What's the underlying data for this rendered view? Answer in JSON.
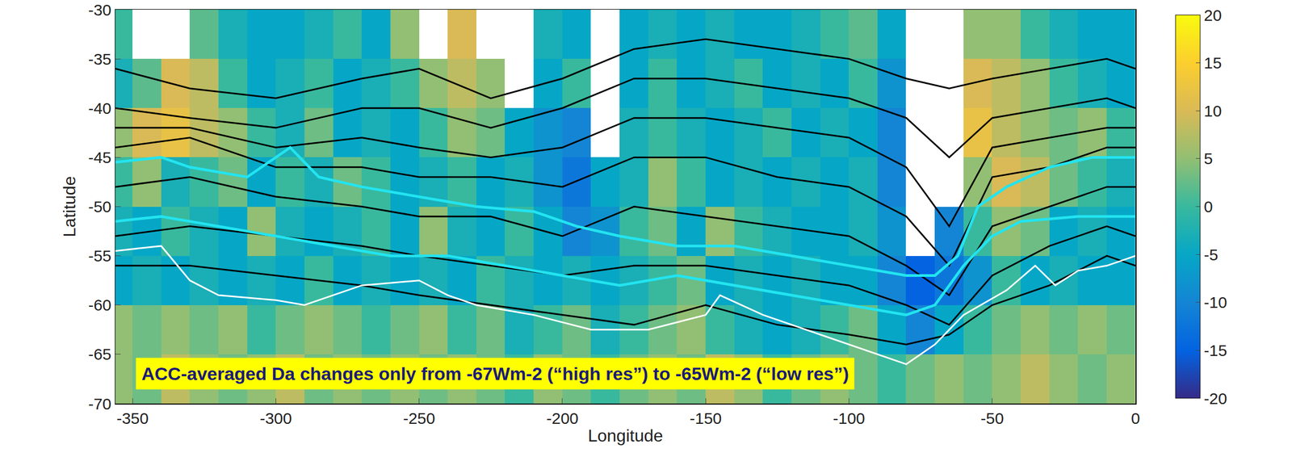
{
  "chart_data": {
    "type": "heatmap",
    "xlabel": "Longitude",
    "ylabel": "Latitude",
    "annotation": "ACC-averaged Da changes only from -67Wm-2 (“high res”) to -65Wm-2 (“low res”)",
    "xlim": [
      -356,
      0
    ],
    "ylim": [
      -70,
      -30
    ],
    "xticks": [
      -350,
      -300,
      -250,
      -200,
      -150,
      -100,
      -50,
      0
    ],
    "yticks": [
      -70,
      -65,
      -60,
      -55,
      -50,
      -45,
      -40,
      -35,
      -30
    ],
    "zlim": [
      -20,
      20
    ],
    "zticks": [
      -20,
      -15,
      -10,
      -5,
      0,
      5,
      10,
      15,
      20
    ],
    "x": [
      -355,
      -345,
      -335,
      -325,
      -315,
      -305,
      -295,
      -285,
      -275,
      -265,
      -255,
      -245,
      -235,
      -225,
      -215,
      -205,
      -195,
      -185,
      -175,
      -165,
      -155,
      -145,
      -135,
      -125,
      -115,
      -105,
      -95,
      -85,
      -75,
      -65,
      -55,
      -45,
      -35,
      -25,
      -15,
      -5
    ],
    "y": [
      -32.5,
      -37.5,
      -42.5,
      -47.5,
      -52.5,
      -57.5,
      -62.5,
      -67.5
    ],
    "z": [
      [
        0,
        null,
        null,
        2,
        -3,
        -5,
        -5,
        -3,
        0,
        -5,
        5,
        null,
        10,
        null,
        null,
        -3,
        -5,
        null,
        -5,
        -3,
        -5,
        -3,
        -5,
        -5,
        -3,
        0,
        2,
        -5,
        null,
        null,
        5,
        5,
        0,
        -3,
        -5,
        -5
      ],
      [
        -3,
        2,
        10,
        8,
        0,
        -5,
        -3,
        0,
        -5,
        -3,
        0,
        5,
        8,
        5,
        null,
        -5,
        0,
        null,
        -5,
        0,
        -5,
        -3,
        0,
        -5,
        -3,
        -5,
        0,
        -8,
        null,
        null,
        10,
        8,
        5,
        0,
        -3,
        -5
      ],
      [
        5,
        10,
        12,
        8,
        5,
        0,
        -3,
        3,
        -5,
        -3,
        -5,
        0,
        5,
        3,
        -5,
        -8,
        -10,
        null,
        -3,
        0,
        -3,
        -5,
        -3,
        0,
        -5,
        -3,
        -5,
        -10,
        null,
        null,
        12,
        8,
        5,
        3,
        5,
        0
      ],
      [
        0,
        5,
        -3,
        0,
        3,
        -5,
        0,
        -3,
        3,
        0,
        -5,
        -3,
        0,
        -5,
        -3,
        -8,
        -12,
        -5,
        -3,
        5,
        0,
        -5,
        -3,
        -5,
        -3,
        -5,
        -3,
        -10,
        null,
        null,
        5,
        10,
        8,
        3,
        0,
        -3
      ],
      [
        -3,
        -5,
        0,
        -3,
        -5,
        5,
        -3,
        -5,
        -3,
        0,
        -5,
        5,
        -3,
        -5,
        0,
        -5,
        -10,
        -8,
        0,
        3,
        -5,
        5,
        0,
        -3,
        -5,
        -5,
        -3,
        -8,
        null,
        -10,
        0,
        5,
        3,
        -5,
        -3,
        -5
      ],
      [
        -5,
        -3,
        -5,
        -3,
        -5,
        -3,
        -5,
        0,
        -5,
        -3,
        -5,
        -3,
        -5,
        0,
        -3,
        -5,
        -3,
        -5,
        -3,
        0,
        3,
        -5,
        -3,
        -5,
        -3,
        -5,
        -5,
        -10,
        -15,
        -12,
        -8,
        0,
        -5,
        -3,
        -5,
        -5
      ],
      [
        5,
        3,
        5,
        3,
        5,
        0,
        3,
        5,
        3,
        0,
        3,
        5,
        0,
        3,
        -3,
        0,
        3,
        -3,
        0,
        3,
        5,
        0,
        -3,
        -5,
        -3,
        0,
        3,
        -5,
        -10,
        -5,
        0,
        3,
        5,
        3,
        5,
        3
      ],
      [
        5,
        3,
        8,
        5,
        3,
        5,
        8,
        3,
        5,
        3,
        5,
        3,
        5,
        3,
        0,
        5,
        3,
        0,
        3,
        5,
        3,
        8,
        5,
        0,
        3,
        5,
        3,
        0,
        3,
        5,
        3,
        5,
        8,
        5,
        3,
        5
      ]
    ],
    "series": [
      {
        "color": "#000000",
        "x": [
          -356,
          -330,
          -300,
          -270,
          -250,
          -225,
          -200,
          -175,
          -150,
          -125,
          -100,
          -80,
          -65,
          -50,
          -30,
          -10,
          0
        ],
        "values": [
          -36,
          -38,
          -39,
          -37,
          -36,
          -39,
          -37,
          -34,
          -33,
          -34,
          -35,
          -37,
          -38,
          -37,
          -36,
          -35,
          -36
        ]
      },
      {
        "color": "#000000",
        "x": [
          -356,
          -330,
          -300,
          -270,
          -250,
          -225,
          -200,
          -175,
          -150,
          -125,
          -100,
          -80,
          -65,
          -50,
          -30,
          -10,
          0
        ],
        "values": [
          -40,
          -41,
          -42,
          -40,
          -40,
          -42,
          -40,
          -37,
          -37,
          -38,
          -39,
          -41,
          -45,
          -41,
          -40,
          -39,
          -40
        ]
      },
      {
        "color": "#000000",
        "x": [
          -356,
          -330,
          -300,
          -270,
          -250,
          -225,
          -200,
          -175,
          -150,
          -125,
          -100,
          -80,
          -65,
          -50,
          -30,
          -10,
          0
        ],
        "values": [
          -42,
          -42,
          -44,
          -43,
          -44,
          -45,
          -44,
          -41,
          -41,
          -42,
          -43,
          -46,
          -52,
          -44,
          -43,
          -42,
          -42
        ]
      },
      {
        "color": "#000000",
        "x": [
          -356,
          -330,
          -300,
          -270,
          -250,
          -225,
          -200,
          -175,
          -150,
          -125,
          -100,
          -80,
          -65,
          -50,
          -30,
          -10,
          0
        ],
        "values": [
          -44,
          -43,
          -46,
          -46,
          -47,
          -47,
          -48,
          -45,
          -45,
          -47,
          -48,
          -51,
          -56,
          -47,
          -46,
          -44,
          -44
        ]
      },
      {
        "color": "#000000",
        "x": [
          -356,
          -330,
          -300,
          -270,
          -250,
          -225,
          -200,
          -175,
          -150,
          -125,
          -100,
          -80,
          -65,
          -50,
          -30,
          -10,
          0
        ],
        "values": [
          -48,
          -47,
          -49,
          -50,
          -51,
          -51,
          -53,
          -50,
          -51,
          -52,
          -53,
          -56,
          -59,
          -52,
          -50,
          -48,
          -48
        ]
      },
      {
        "color": "#000000",
        "x": [
          -356,
          -330,
          -300,
          -270,
          -250,
          -225,
          -200,
          -175,
          -150,
          -125,
          -100,
          -80,
          -65,
          -50,
          -30,
          -10,
          0
        ],
        "values": [
          -53,
          -52,
          -53,
          -54,
          -55,
          -56,
          -57,
          -56,
          -56,
          -57,
          -58,
          -60,
          -62,
          -57,
          -54,
          -52,
          -53
        ]
      },
      {
        "color": "#000000",
        "x": [
          -356,
          -330,
          -300,
          -270,
          -250,
          -225,
          -200,
          -175,
          -150,
          -125,
          -100,
          -80,
          -65,
          -50,
          -30,
          -10,
          0
        ],
        "values": [
          -56,
          -56,
          -57,
          -58,
          -59,
          -60,
          -61,
          -62,
          -60,
          -62,
          -63,
          -64,
          -63,
          -60,
          -58,
          -55,
          -56
        ]
      },
      {
        "color": "#22e4f0",
        "x": [
          -356,
          -340,
          -330,
          -310,
          -295,
          -285,
          -270,
          -250,
          -230,
          -210,
          -195,
          -180,
          -160,
          -140,
          -120,
          -100,
          -80,
          -70,
          -62,
          -55,
          -45,
          -30,
          -15,
          0
        ],
        "values": [
          -45.5,
          -45,
          -46,
          -47,
          -44,
          -47,
          -48,
          -49,
          -50,
          -50.5,
          -52,
          -53,
          -54,
          -54,
          -55,
          -56,
          -57,
          -57,
          -55,
          -50,
          -48,
          -46,
          -45,
          -45
        ]
      },
      {
        "color": "#22e4f0",
        "x": [
          -356,
          -340,
          -320,
          -300,
          -280,
          -260,
          -240,
          -220,
          -200,
          -180,
          -160,
          -140,
          -120,
          -100,
          -80,
          -70,
          -60,
          -50,
          -40,
          -20,
          0
        ],
        "values": [
          -51.5,
          -51,
          -52,
          -53,
          -54,
          -55,
          -55,
          -56,
          -57,
          -58,
          -57,
          -58,
          -59,
          -60,
          -61,
          -60,
          -56,
          -53,
          -51.5,
          -51,
          -51
        ]
      },
      {
        "color": "#ffffff",
        "x": [
          -356,
          -340,
          -330,
          -320,
          -300,
          -290,
          -270,
          -250,
          -240,
          -230,
          -210,
          -190,
          -170,
          -150,
          -145,
          -130,
          -110,
          -90,
          -80,
          -70,
          -60,
          -45,
          -35,
          -28,
          -20,
          -10,
          0
        ],
        "values": [
          -54.5,
          -54,
          -57.5,
          -59,
          -59.5,
          -60,
          -58,
          -57.5,
          -59,
          -60,
          -61,
          -62.5,
          -62.5,
          -61,
          -59,
          -61,
          -63,
          -65,
          -66,
          -64,
          -61,
          -58.5,
          -56,
          -58,
          -56.5,
          -56,
          -55
        ]
      }
    ]
  }
}
